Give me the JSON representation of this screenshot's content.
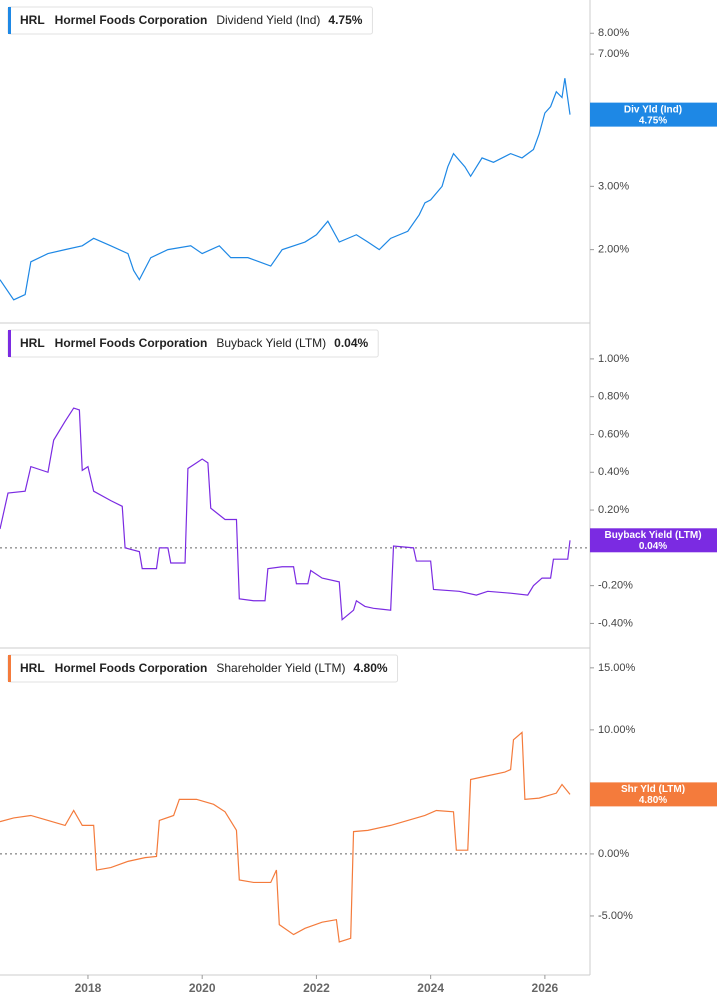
{
  "chart_data": [
    {
      "type": "line",
      "ticker": "HRL",
      "company": "Hormel Foods Corporation",
      "header_value": "4.75%",
      "badge_label": "Div Yld (Ind)",
      "badge_value": "4.75%",
      "log_scale": true,
      "xlim": [
        2016.46,
        2026.79
      ],
      "ylim": [
        1.25,
        9.9
      ],
      "yticks": [
        {
          "value": 8,
          "label": "8.00%"
        },
        {
          "value": 7,
          "label": "7.00%"
        },
        {
          "value": 3,
          "label": "3.00%"
        },
        {
          "value": 2,
          "label": "2.00%"
        }
      ],
      "x": [
        2016.46,
        2016.7,
        2016.9,
        2017.0,
        2017.3,
        2017.6,
        2017.9,
        2018.1,
        2018.4,
        2018.7,
        2018.8,
        2018.9,
        2019.1,
        2019.4,
        2019.8,
        2020.0,
        2020.3,
        2020.5,
        2020.8,
        2021.0,
        2021.2,
        2021.4,
        2021.8,
        2022.0,
        2022.2,
        2022.4,
        2022.7,
        2022.9,
        2023.1,
        2023.3,
        2023.6,
        2023.8,
        2023.9,
        2024.0,
        2024.2,
        2024.3,
        2024.4,
        2024.6,
        2024.7,
        2024.9,
        2025.1,
        2025.4,
        2025.6,
        2025.8,
        2025.9,
        2026.0,
        2026.1,
        2026.2,
        2026.3,
        2026.35,
        2026.44
      ],
      "series": [
        {
          "name": "Dividend Yield (Ind)",
          "color": "#1e88e5",
          "values": [
            1.65,
            1.45,
            1.5,
            1.85,
            1.95,
            2.0,
            2.05,
            2.15,
            2.05,
            1.95,
            1.75,
            1.65,
            1.9,
            2.0,
            2.05,
            1.95,
            2.05,
            1.9,
            1.9,
            1.85,
            1.8,
            2.0,
            2.1,
            2.2,
            2.4,
            2.1,
            2.2,
            2.1,
            2.0,
            2.15,
            2.25,
            2.5,
            2.7,
            2.75,
            3.0,
            3.4,
            3.7,
            3.4,
            3.2,
            3.6,
            3.5,
            3.7,
            3.6,
            3.8,
            4.2,
            4.8,
            5.0,
            5.5,
            5.3,
            6.0,
            4.75
          ]
        }
      ]
    },
    {
      "type": "line",
      "ticker": "HRL",
      "company": "Hormel Foods Corporation",
      "header_value": "0.04%",
      "badge_label": "Buyback Yield (LTM)",
      "badge_value": "0.04%",
      "reference_line": 0,
      "xlim": [
        2016.46,
        2026.79
      ],
      "ylim": [
        -0.53,
        1.19
      ],
      "yticks": [
        {
          "value": 1,
          "label": "1.00%"
        },
        {
          "value": 0.8,
          "label": "0.80%"
        },
        {
          "value": 0.6,
          "label": "0.60%"
        },
        {
          "value": 0.4,
          "label": "0.40%"
        },
        {
          "value": 0.2,
          "label": "0.20%"
        },
        {
          "value": -0.2,
          "label": "-0.20%"
        },
        {
          "value": -0.4,
          "label": "-0.40%"
        }
      ],
      "x": [
        2016.46,
        2016.6,
        2016.9,
        2017.0,
        2017.3,
        2017.4,
        2017.6,
        2017.75,
        2017.85,
        2017.9,
        2018.0,
        2018.1,
        2018.4,
        2018.6,
        2018.65,
        2018.9,
        2018.95,
        2019.2,
        2019.25,
        2019.4,
        2019.45,
        2019.7,
        2019.75,
        2019.9,
        2020.0,
        2020.1,
        2020.15,
        2020.4,
        2020.6,
        2020.65,
        2020.9,
        2021.1,
        2021.15,
        2021.4,
        2021.6,
        2021.65,
        2021.85,
        2021.9,
        2022.1,
        2022.4,
        2022.45,
        2022.65,
        2022.7,
        2022.85,
        2023.0,
        2023.3,
        2023.35,
        2023.7,
        2023.75,
        2024.0,
        2024.05,
        2024.5,
        2024.8,
        2025.0,
        2025.4,
        2025.7,
        2025.8,
        2025.95,
        2026.1,
        2026.15,
        2026.4,
        2026.44
      ],
      "series": [
        {
          "name": "Buyback Yield (LTM)",
          "color": "#7b2be2",
          "values": [
            0.1,
            0.29,
            0.3,
            0.43,
            0.4,
            0.57,
            0.67,
            0.74,
            0.73,
            0.41,
            0.43,
            0.3,
            0.25,
            0.22,
            0.0,
            -0.02,
            -0.11,
            -0.11,
            0.0,
            0.0,
            -0.08,
            -0.08,
            0.42,
            0.45,
            0.47,
            0.45,
            0.21,
            0.15,
            0.15,
            -0.27,
            -0.28,
            -0.28,
            -0.11,
            -0.1,
            -0.1,
            -0.19,
            -0.19,
            -0.12,
            -0.16,
            -0.18,
            -0.38,
            -0.33,
            -0.28,
            -0.31,
            -0.32,
            -0.33,
            0.01,
            0.0,
            -0.07,
            -0.07,
            -0.22,
            -0.23,
            -0.25,
            -0.23,
            -0.24,
            -0.25,
            -0.2,
            -0.16,
            -0.16,
            -0.06,
            -0.06,
            0.04
          ]
        }
      ]
    },
    {
      "type": "line",
      "ticker": "HRL",
      "company": "Hormel Foods Corporation",
      "header_value": "4.80%",
      "badge_label": "Shr Yld (LTM)",
      "badge_value": "4.80%",
      "reference_line": 0,
      "xlim": [
        2016.46,
        2026.79
      ],
      "ylim": [
        -9.76,
        16.6
      ],
      "yticks": [
        {
          "value": 15,
          "label": "15.00%"
        },
        {
          "value": 10,
          "label": "10.00%"
        },
        {
          "value": 0,
          "label": "0.00%"
        },
        {
          "value": -5,
          "label": "-5.00%"
        }
      ],
      "xticks": [
        2018,
        2020,
        2022,
        2024,
        2026
      ],
      "x": [
        2016.46,
        2016.7,
        2017.0,
        2017.3,
        2017.6,
        2017.75,
        2017.9,
        2018.1,
        2018.15,
        2018.4,
        2018.7,
        2019.0,
        2019.2,
        2019.25,
        2019.5,
        2019.6,
        2019.9,
        2020.2,
        2020.4,
        2020.6,
        2020.65,
        2020.9,
        2021.2,
        2021.3,
        2021.35,
        2021.6,
        2021.8,
        2022.1,
        2022.35,
        2022.4,
        2022.6,
        2022.65,
        2022.9,
        2023.3,
        2023.6,
        2023.9,
        2024.1,
        2024.4,
        2024.45,
        2024.65,
        2024.7,
        2025.0,
        2025.3,
        2025.4,
        2025.45,
        2025.6,
        2025.65,
        2025.9,
        2026.2,
        2026.3,
        2026.44
      ],
      "series": [
        {
          "name": "Shareholder Yield (LTM)",
          "color": "#f47b3c",
          "values": [
            2.6,
            2.9,
            3.1,
            2.7,
            2.3,
            3.5,
            2.3,
            2.3,
            -1.3,
            -1.1,
            -0.6,
            -0.3,
            -0.2,
            2.7,
            3.1,
            4.4,
            4.4,
            4.0,
            3.4,
            1.9,
            -2.1,
            -2.3,
            -2.3,
            -1.3,
            -5.7,
            -6.5,
            -6.0,
            -5.5,
            -5.3,
            -7.1,
            -6.8,
            1.8,
            1.9,
            2.3,
            2.7,
            3.1,
            3.5,
            3.4,
            0.3,
            0.3,
            6.0,
            6.3,
            6.6,
            6.8,
            9.2,
            9.8,
            4.4,
            4.5,
            4.9,
            5.6,
            4.8
          ]
        }
      ]
    }
  ]
}
